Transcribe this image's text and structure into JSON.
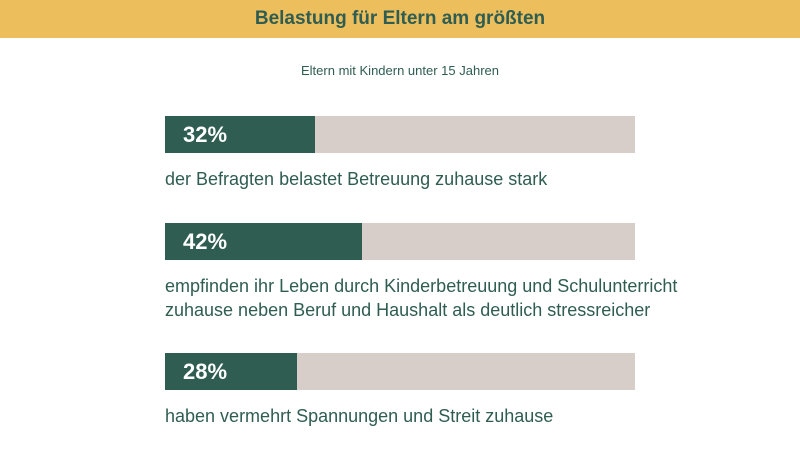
{
  "chart_data": {
    "type": "bar",
    "title": "Belastung für Eltern am größten",
    "subtitle": "Eltern mit Kindern unter 15 Jahren",
    "max_value": 100,
    "items": [
      {
        "value": 32,
        "label": "32%",
        "description_lines": [
          "der Befragten belastet Betreuung zuhause stark"
        ]
      },
      {
        "value": 42,
        "label": "42%",
        "description_lines": [
          "empfinden ihr Leben durch Kinderbetreuung und Schulunterricht",
          "zuhause neben Beruf und Haushalt als deutlich stressreicher"
        ]
      },
      {
        "value": 28,
        "label": "28%",
        "description_lines": [
          "haben vermehrt Spannungen und Streit zuhause"
        ]
      }
    ]
  },
  "colors": {
    "header_bg": "#ecbe5c",
    "fill": "#2f5d52",
    "track": "#d7cec9",
    "text": "#2f5d52"
  }
}
